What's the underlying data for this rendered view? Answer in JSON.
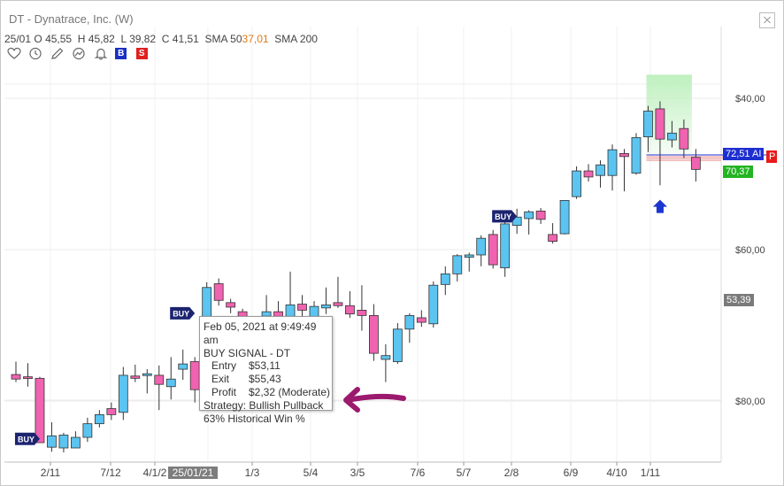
{
  "window": {
    "title": "DT - Dynatrace, Inc. (W)"
  },
  "header": {
    "date": "25/01",
    "open_label": "O",
    "open": "45,55",
    "high_label": "H",
    "high": "45,82",
    "low_label": "L",
    "low": "39,82",
    "close_label": "C",
    "close": "41,51",
    "sma50_label": "SMA 50",
    "sma50_value": "37,01",
    "sma200_label": "SMA 200"
  },
  "toolbar": {
    "icons": [
      "heart-icon",
      "clock-icon",
      "pencil-icon",
      "trend-icon",
      "bell-icon"
    ],
    "buy_label": "B",
    "sell_label": "S"
  },
  "axes": {
    "y_ticks": [
      "$80,00",
      "$60,00",
      "$40,00"
    ],
    "x_ticks": [
      "2/11",
      "7/12",
      "4/1/2",
      "1/3",
      "5/4",
      "3/5",
      "7/6",
      "5/7",
      "2/8",
      "6/9",
      "4/10",
      "1/11"
    ],
    "crosshair_date": "25/01/21"
  },
  "price_tags": {
    "blue": "72,51 AI",
    "red": "P",
    "green": "70,37",
    "grey": "53,39"
  },
  "signals": {
    "buy_label": "BUY"
  },
  "tooltip": {
    "datetime": "Feb 05, 2021 at 9:49:49 am",
    "heading": "BUY SIGNAL - DT",
    "entry_label": "Entry",
    "entry": "$53,11",
    "exit_label": "Exit",
    "exit": "$55,43",
    "profit_label": "Profit",
    "profit": "$2,32 (Moderate)",
    "strategy": "Strategy: Bullish Pullback",
    "win": "63% Historical Win %"
  },
  "colors": {
    "up": "#5bc4f0",
    "down": "#f063b0",
    "arrow": "#9b1a6e",
    "up_arrow": "#1a35d0",
    "projection": "#bff0bf"
  },
  "chart_data": {
    "type": "candlestick",
    "ylim": [
      31.4,
      84.1
    ],
    "y_ticks": [
      40,
      60,
      80
    ],
    "candles": [
      {
        "x": "w1",
        "o": 43.5,
        "h": 45.2,
        "l": 42.5,
        "c": 42.9
      },
      {
        "x": "w2",
        "o": 43.2,
        "h": 45.0,
        "l": 41.9,
        "c": 43.0
      },
      {
        "x": "w3",
        "o": 43.0,
        "h": 43.2,
        "l": 35.0,
        "c": 34.5
      },
      {
        "x": "w4",
        "o": 33.9,
        "h": 37.2,
        "l": 33.3,
        "c": 35.4
      },
      {
        "x": "w5",
        "o": 33.8,
        "h": 35.8,
        "l": 33.2,
        "c": 35.5
      },
      {
        "x": "w6",
        "o": 33.8,
        "h": 36.0,
        "l": 33.8,
        "c": 35.2
      },
      {
        "x": "w7",
        "o": 35.2,
        "h": 37.8,
        "l": 34.6,
        "c": 37.0
      },
      {
        "x": "w8",
        "o": 37.0,
        "h": 38.8,
        "l": 36.5,
        "c": 38.2
      },
      {
        "x": "w9",
        "o": 39.0,
        "h": 39.8,
        "l": 37.5,
        "c": 38.2
      },
      {
        "x": "w10",
        "o": 38.5,
        "h": 44.5,
        "l": 37.5,
        "c": 43.4
      },
      {
        "x": "w11",
        "o": 43.3,
        "h": 44.8,
        "l": 42.5,
        "c": 43.0
      },
      {
        "x": "w12",
        "o": 43.5,
        "h": 44.2,
        "l": 41.0,
        "c": 43.6
      },
      {
        "x": "w13",
        "o": 43.4,
        "h": 44.7,
        "l": 38.8,
        "c": 42.2
      },
      {
        "x": "w14",
        "o": 41.9,
        "h": 45.8,
        "l": 40.2,
        "c": 42.9
      },
      {
        "x": "w15",
        "o": 44.2,
        "h": 46.8,
        "l": 42.8,
        "c": 44.9
      },
      {
        "x": "w16",
        "o": 45.2,
        "h": 45.8,
        "l": 39.8,
        "c": 41.5
      },
      {
        "x": "w17",
        "o": 50.3,
        "h": 55.7,
        "l": 49.4,
        "c": 55.0
      },
      {
        "x": "w18",
        "o": 55.5,
        "h": 56.2,
        "l": 52.6,
        "c": 53.3
      },
      {
        "x": "w19",
        "o": 53.0,
        "h": 53.5,
        "l": 51.6,
        "c": 52.4
      },
      {
        "x": "w20",
        "o": 51.8,
        "h": 52.2,
        "l": 48.9,
        "c": 50.9
      },
      {
        "x": "w21",
        "o": 50.5,
        "h": 51.0,
        "l": 48.9,
        "c": 50.1
      },
      {
        "x": "w22",
        "o": 51.2,
        "h": 54.0,
        "l": 48.6,
        "c": 51.8
      },
      {
        "x": "w23",
        "o": 51.8,
        "h": 53.2,
        "l": 48.6,
        "c": 51.0
      },
      {
        "x": "w24",
        "o": 50.0,
        "h": 57.1,
        "l": 47.1,
        "c": 52.7
      },
      {
        "x": "w25",
        "o": 52.8,
        "h": 54.0,
        "l": 48.3,
        "c": 52.0
      },
      {
        "x": "w26",
        "o": 50.8,
        "h": 53.2,
        "l": 49.7,
        "c": 52.5
      },
      {
        "x": "w27",
        "o": 52.3,
        "h": 55.0,
        "l": 51.5,
        "c": 52.7
      },
      {
        "x": "w28",
        "o": 53.0,
        "h": 56.4,
        "l": 52.3,
        "c": 52.6
      },
      {
        "x": "w29",
        "o": 52.6,
        "h": 54.5,
        "l": 51.0,
        "c": 51.5
      },
      {
        "x": "w30",
        "o": 52.0,
        "h": 55.3,
        "l": 49.3,
        "c": 51.3
      },
      {
        "x": "w31",
        "o": 51.3,
        "h": 52.8,
        "l": 45.3,
        "c": 46.3
      },
      {
        "x": "w32",
        "o": 45.5,
        "h": 47.5,
        "l": 42.5,
        "c": 46.0
      },
      {
        "x": "w33",
        "o": 45.2,
        "h": 50.3,
        "l": 44.9,
        "c": 49.5
      },
      {
        "x": "w34",
        "o": 49.5,
        "h": 51.6,
        "l": 47.7,
        "c": 51.3
      },
      {
        "x": "w35",
        "o": 51.0,
        "h": 52.0,
        "l": 49.8,
        "c": 50.4
      },
      {
        "x": "w36",
        "o": 50.2,
        "h": 55.8,
        "l": 49.7,
        "c": 55.3
      },
      {
        "x": "w37",
        "o": 55.4,
        "h": 57.8,
        "l": 54.0,
        "c": 56.8
      },
      {
        "x": "w38",
        "o": 56.8,
        "h": 59.4,
        "l": 55.8,
        "c": 59.2
      },
      {
        "x": "w39",
        "o": 59.0,
        "h": 59.6,
        "l": 57.1,
        "c": 59.3
      },
      {
        "x": "w40",
        "o": 59.3,
        "h": 61.9,
        "l": 57.8,
        "c": 61.5
      },
      {
        "x": "w41",
        "o": 62.0,
        "h": 62.6,
        "l": 57.5,
        "c": 58.0
      },
      {
        "x": "w42",
        "o": 57.6,
        "h": 65.1,
        "l": 56.4,
        "c": 63.4
      },
      {
        "x": "w43",
        "o": 63.2,
        "h": 65.4,
        "l": 62.1,
        "c": 64.3
      },
      {
        "x": "w44",
        "o": 64.1,
        "h": 65.2,
        "l": 62.0,
        "c": 65.0
      },
      {
        "x": "w45",
        "o": 65.1,
        "h": 65.5,
        "l": 63.4,
        "c": 64.0
      },
      {
        "x": "w46",
        "o": 62.0,
        "h": 63.5,
        "l": 60.8,
        "c": 61.1
      },
      {
        "x": "w47",
        "o": 62.1,
        "h": 66.5,
        "l": 62.0,
        "c": 66.5
      },
      {
        "x": "w48",
        "o": 67.0,
        "h": 71.0,
        "l": 66.7,
        "c": 70.4
      },
      {
        "x": "w49",
        "o": 70.4,
        "h": 71.3,
        "l": 69.0,
        "c": 69.6
      },
      {
        "x": "w50",
        "o": 69.8,
        "h": 71.8,
        "l": 68.2,
        "c": 71.2
      },
      {
        "x": "w51",
        "o": 69.8,
        "h": 73.9,
        "l": 67.8,
        "c": 73.2
      },
      {
        "x": "w52",
        "o": 72.7,
        "h": 73.3,
        "l": 67.7,
        "c": 72.3
      },
      {
        "x": "w53",
        "o": 70.1,
        "h": 75.4,
        "l": 69.9,
        "c": 74.8
      },
      {
        "x": "w54",
        "o": 74.9,
        "h": 79.0,
        "l": 72.9,
        "c": 78.3
      },
      {
        "x": "w55",
        "o": 78.6,
        "h": 79.6,
        "l": 68.5,
        "c": 74.6
      },
      {
        "x": "w56",
        "o": 74.5,
        "h": 77.0,
        "l": 73.5,
        "c": 75.4
      },
      {
        "x": "w57",
        "o": 76.0,
        "h": 77.2,
        "l": 72.1,
        "c": 73.3
      },
      {
        "x": "w58",
        "o": 72.2,
        "h": 73.3,
        "l": 69.0,
        "c": 70.6
      }
    ],
    "buy_signals": [
      {
        "x": "w3",
        "price": 35.0
      },
      {
        "x": "w16",
        "price": 51.6
      },
      {
        "x": "w43",
        "price": 64.4
      }
    ],
    "levels": {
      "blue": 72.51,
      "red_line": 71.8,
      "green": 70.37,
      "grey": 53.39
    },
    "projection": {
      "from": "w54",
      "to": "w57",
      "low": 72.5,
      "high": 83.0
    },
    "up_arrow": {
      "x": "w55",
      "price": 68.0
    }
  }
}
